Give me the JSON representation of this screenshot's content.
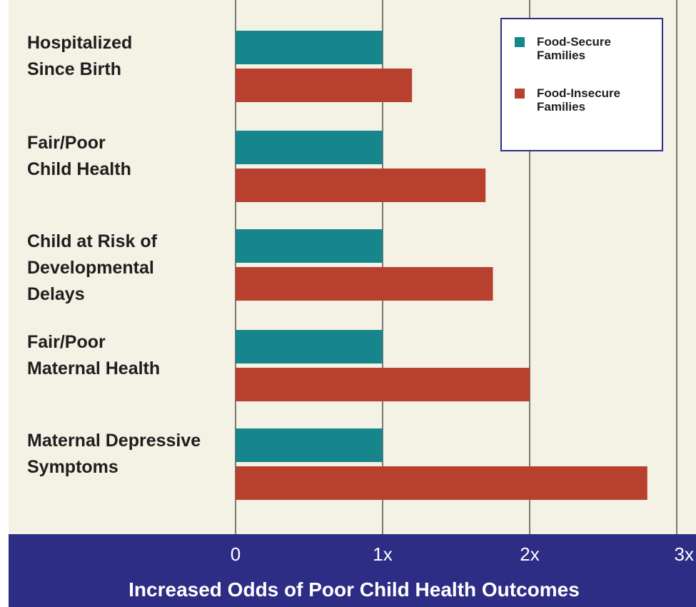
{
  "chart_data": {
    "type": "bar",
    "orientation": "horizontal",
    "categories": [
      [
        "Hospitalized",
        "Since Birth"
      ],
      [
        "Fair/Poor",
        "Child Health"
      ],
      [
        "Child at Risk of",
        "Developmental",
        "Delays"
      ],
      [
        "Fair/Poor",
        "Maternal Health"
      ],
      [
        "Maternal Depressive",
        "Symptoms"
      ]
    ],
    "series": [
      {
        "name": "Food-Secure Families",
        "legend_lines": [
          "Food-Secure",
          "Families"
        ],
        "color": "#17868c",
        "values": [
          1,
          1,
          1,
          1,
          1
        ]
      },
      {
        "name": "Food-Insecure Families",
        "legend_lines": [
          "Food-Insecure",
          "Families"
        ],
        "color": "#b8402f",
        "values": [
          1.2,
          1.7,
          1.75,
          2.0,
          2.8
        ]
      }
    ],
    "xticks": [
      0,
      1,
      2,
      3
    ],
    "xtick_labels": [
      "0",
      "1x",
      "2x",
      "3x"
    ],
    "xlim": [
      0,
      3
    ],
    "xlabel": "Increased Odds of Poor Child Health Outcomes",
    "legend_position": "top-right",
    "grid": true,
    "colors": {
      "plot_background": "#f4f1e5",
      "axis_band": "#2e2d86",
      "legend_border": "#2e2d86",
      "gridline": "#2a2a2a"
    }
  }
}
